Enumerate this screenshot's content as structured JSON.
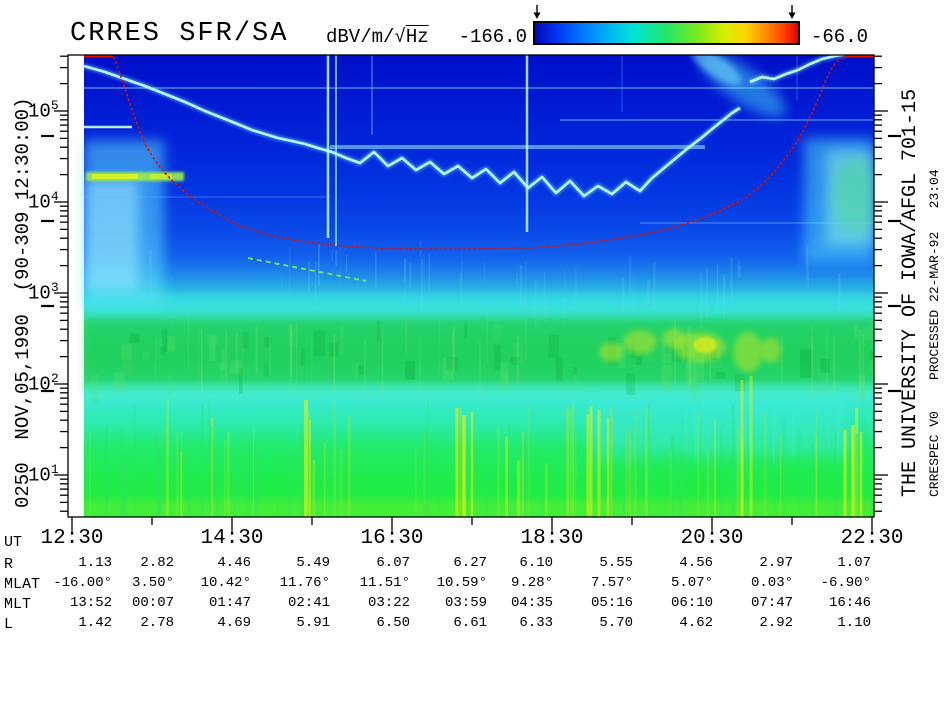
{
  "header": {
    "title": "CRRES SFR/SA",
    "colorbar": {
      "units_prefix": "dBV/m/√",
      "units_overline": "Hz",
      "min_label": "-166.0",
      "max_label": "-66.0",
      "range_db": [
        -166.0,
        -66.0
      ]
    }
  },
  "side_labels": {
    "left": "0250  NOV,05,1990  (90-309 12:30:00)",
    "right_institution": "THE UNIVERSITY OF IOWA/AFGL 701-15",
    "right_processing": "CRRESPEC V0    PROCESSED 22-MAR-92   23:04"
  },
  "chart_data": {
    "type": "heatmap",
    "subtype": "frequency-time radio spectrogram",
    "title": "CRRES SFR/SA",
    "color_scale": {
      "units": "dBV/m/√Hz",
      "min": -166.0,
      "max": -66.0,
      "palette": [
        "#0009b8",
        "#0060ff",
        "#00b4f2",
        "#00e6d2",
        "#22e668",
        "#a0e800",
        "#d8ee00",
        "#ffd400",
        "#ff8800",
        "#e00000"
      ]
    },
    "x_axis": {
      "label": "UT",
      "major_ticks": [
        "12:30",
        "14:30",
        "16:30",
        "18:30",
        "20:30",
        "22:30"
      ],
      "minor_ticks": [
        "13:30",
        "15:30",
        "17:30",
        "19:30",
        "21:30"
      ]
    },
    "y_axis": {
      "scale": "log",
      "tick_base": "10",
      "tick_exponents": [
        5,
        4,
        3,
        2,
        1
      ]
    },
    "overlays": [
      "red dotted curve dipping from top-left to mid-plot minimum and rising to top-right",
      "wavy cyan emission trace, high at both plot edges and lowest mid-plot",
      "bright green band between roughly 10^2.5 and 10^3 Hz",
      "broadband vertical green-yellow bursts below ~1 kHz"
    ],
    "ephemeris_rows": [
      {
        "label": "UT",
        "values": [
          "12:30",
          "14:30",
          "16:30",
          "18:30",
          "20:30",
          "22:30"
        ]
      },
      {
        "label": "R",
        "values": [
          "1.13",
          "2.82",
          "4.46",
          "5.49",
          "6.07",
          "6.27",
          "6.10",
          "5.55",
          "4.56",
          "2.97",
          "1.07"
        ]
      },
      {
        "label": "MLAT",
        "values": [
          "-16.00°",
          "3.50°",
          "10.42°",
          "11.76°",
          "11.51°",
          "10.59°",
          "9.28°",
          "7.57°",
          "5.07°",
          "0.03°",
          "-6.90°"
        ]
      },
      {
        "label": "MLT",
        "values": [
          "13:52",
          "00:07",
          "01:47",
          "02:41",
          "03:22",
          "03:59",
          "04:35",
          "05:16",
          "06:10",
          "07:47",
          "16:46"
        ]
      },
      {
        "label": "L",
        "values": [
          "1.42",
          "2.78",
          "4.69",
          "5.91",
          "6.50",
          "6.61",
          "6.33",
          "5.70",
          "4.62",
          "2.92",
          "1.10"
        ]
      }
    ]
  }
}
